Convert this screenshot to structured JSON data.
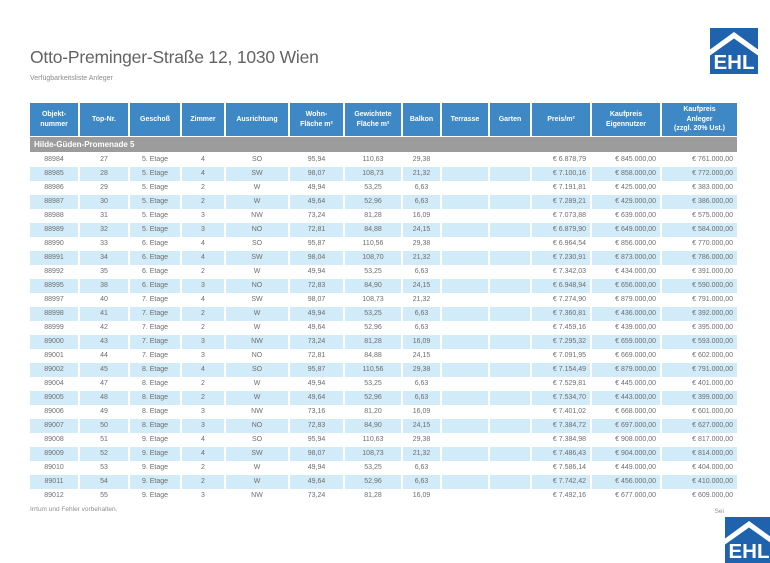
{
  "page": {
    "title": "Otto-Preminger-Straße 12, 1030 Wien",
    "subtitle": "Verfügbarkeitsliste Anleger"
  },
  "brand": {
    "logo_text": "EHL"
  },
  "table": {
    "columns": [
      "Objekt-\nnummer",
      "Top-Nr.",
      "Geschoß",
      "Zimmer",
      "Ausrichtung",
      "Wohn-\nFläche m²",
      "Gewichtete\nFläche m²",
      "Balkon",
      "Terrasse",
      "Garten",
      "Preis/m²",
      "Kaufpreis\nEigennutzer",
      "Kaufpreis\nAnleger\n(zzgl. 20% Ust.)"
    ],
    "group_label": "Hilde-Güden-Promenade 5",
    "rows": [
      [
        "88984",
        "27",
        "5. Etage",
        "4",
        "SO",
        "95,94",
        "110,63",
        "29,38",
        "",
        "",
        "€ 6.878,79",
        "€ 845.000,00",
        "€ 761.000,00"
      ],
      [
        "88985",
        "28",
        "5. Etage",
        "4",
        "SW",
        "98,07",
        "108,73",
        "21,32",
        "",
        "",
        "€ 7.100,16",
        "€ 858.000,00",
        "€ 772.000,00"
      ],
      [
        "88986",
        "29",
        "5. Etage",
        "2",
        "W",
        "49,94",
        "53,25",
        "6,63",
        "",
        "",
        "€ 7.191,81",
        "€ 425.000,00",
        "€ 383.000,00"
      ],
      [
        "88987",
        "30",
        "5. Etage",
        "2",
        "W",
        "49,64",
        "52,96",
        "6,63",
        "",
        "",
        "€ 7.289,21",
        "€ 429.000,00",
        "€ 386.000,00"
      ],
      [
        "88988",
        "31",
        "5. Etage",
        "3",
        "NW",
        "73,24",
        "81,28",
        "16,09",
        "",
        "",
        "€ 7.073,88",
        "€ 639.000,00",
        "€ 575.000,00"
      ],
      [
        "88989",
        "32",
        "5. Etage",
        "3",
        "NO",
        "72,81",
        "84,88",
        "24,15",
        "",
        "",
        "€ 6.879,90",
        "€ 649.000,00",
        "€ 584.000,00"
      ],
      [
        "88990",
        "33",
        "6. Etage",
        "4",
        "SO",
        "95,87",
        "110,56",
        "29,38",
        "",
        "",
        "€ 6.964,54",
        "€ 856.000,00",
        "€ 770.000,00"
      ],
      [
        "88991",
        "34",
        "6. Etage",
        "4",
        "SW",
        "98,04",
        "108,70",
        "21,32",
        "",
        "",
        "€ 7.230,91",
        "€ 873.000,00",
        "€ 786.000,00"
      ],
      [
        "88992",
        "35",
        "6. Etage",
        "2",
        "W",
        "49,94",
        "53,25",
        "6,63",
        "",
        "",
        "€ 7.342,03",
        "€ 434.000,00",
        "€ 391.000,00"
      ],
      [
        "88995",
        "38",
        "6. Etage",
        "3",
        "NO",
        "72,83",
        "84,90",
        "24,15",
        "",
        "",
        "€ 6.948,94",
        "€ 656.000,00",
        "€ 590.000,00"
      ],
      [
        "88997",
        "40",
        "7. Etage",
        "4",
        "SW",
        "98,07",
        "108,73",
        "21,32",
        "",
        "",
        "€ 7.274,90",
        "€ 879.000,00",
        "€ 791.000,00"
      ],
      [
        "88998",
        "41",
        "7. Etage",
        "2",
        "W",
        "49,94",
        "53,25",
        "6,63",
        "",
        "",
        "€ 7.360,81",
        "€ 436.000,00",
        "€ 392.000,00"
      ],
      [
        "88999",
        "42",
        "7. Etage",
        "2",
        "W",
        "49,64",
        "52,96",
        "6,63",
        "",
        "",
        "€ 7.459,16",
        "€ 439.000,00",
        "€ 395.000,00"
      ],
      [
        "89000",
        "43",
        "7. Etage",
        "3",
        "NW",
        "73,24",
        "81,28",
        "16,09",
        "",
        "",
        "€ 7.295,32",
        "€ 659.000,00",
        "€ 593.000,00"
      ],
      [
        "89001",
        "44",
        "7. Etage",
        "3",
        "NO",
        "72,81",
        "84,88",
        "24,15",
        "",
        "",
        "€ 7.091,95",
        "€ 669.000,00",
        "€ 602.000,00"
      ],
      [
        "89002",
        "45",
        "8. Etage",
        "4",
        "SO",
        "95,87",
        "110,56",
        "29,38",
        "",
        "",
        "€ 7.154,49",
        "€ 879.000,00",
        "€ 791.000,00"
      ],
      [
        "89004",
        "47",
        "8. Etage",
        "2",
        "W",
        "49,94",
        "53,25",
        "6,63",
        "",
        "",
        "€ 7.529,81",
        "€ 445.000,00",
        "€ 401.000,00"
      ],
      [
        "89005",
        "48",
        "8. Etage",
        "2",
        "W",
        "49,64",
        "52,96",
        "6,63",
        "",
        "",
        "€ 7.534,70",
        "€ 443.000,00",
        "€ 399.000,00"
      ],
      [
        "89006",
        "49",
        "8. Etage",
        "3",
        "NW",
        "73,16",
        "81,20",
        "16,09",
        "",
        "",
        "€ 7.401,02",
        "€ 668.000,00",
        "€ 601.000,00"
      ],
      [
        "89007",
        "50",
        "8. Etage",
        "3",
        "NO",
        "72,83",
        "84,90",
        "24,15",
        "",
        "",
        "€ 7.384,72",
        "€ 697.000,00",
        "€ 627.000,00"
      ],
      [
        "89008",
        "51",
        "9. Etage",
        "4",
        "SO",
        "95,94",
        "110,63",
        "29,38",
        "",
        "",
        "€ 7.384,98",
        "€ 908.000,00",
        "€ 817.000,00"
      ],
      [
        "89009",
        "52",
        "9. Etage",
        "4",
        "SW",
        "98,07",
        "108,73",
        "21,32",
        "",
        "",
        "€ 7.486,43",
        "€ 904.000,00",
        "€ 814.000,00"
      ],
      [
        "89010",
        "53",
        "9. Etage",
        "2",
        "W",
        "49,94",
        "53,25",
        "6,63",
        "",
        "",
        "€ 7.586,14",
        "€ 449.000,00",
        "€ 404.000,00"
      ],
      [
        "89011",
        "54",
        "9. Etage",
        "2",
        "W",
        "49,64",
        "52,96",
        "6,63",
        "",
        "",
        "€ 7.742,42",
        "€ 456.000,00",
        "€ 410.000,00"
      ],
      [
        "89012",
        "55",
        "9. Etage",
        "3",
        "NW",
        "73,24",
        "81,28",
        "16,09",
        "",
        "",
        "€ 7.492,16",
        "€ 677.000,00",
        "€ 609.000,00"
      ]
    ]
  },
  "footer": {
    "disclaimer": "Irrtum und Fehler vorbehalten.",
    "page_label": "Sei"
  },
  "colors": {
    "header_blue": "#3f88c6",
    "row_alt_blue": "#d2ebf8",
    "group_gray": "#9c9c9c",
    "logo_blue": "#1f63ae",
    "text_gray": "#6e6e6e"
  }
}
